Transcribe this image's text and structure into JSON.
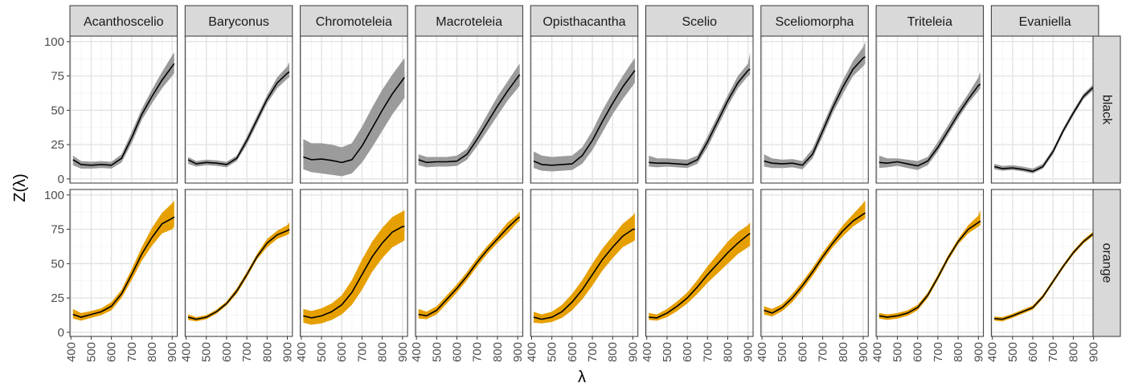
{
  "chart_data": {
    "type": "line",
    "xlabel": "λ",
    "ylabel": "Z(λ)",
    "xlim": [
      395,
      925
    ],
    "ylim": [
      -3,
      104
    ],
    "x_ticks": [
      400,
      500,
      600,
      700,
      800,
      900
    ],
    "y_ticks": [
      0,
      25,
      50,
      75,
      100
    ],
    "grid": true,
    "row_facets": [
      "black",
      "orange"
    ],
    "col_facets": [
      "Acanthoscelio",
      "Baryconus",
      "Chromoteleia",
      "Macroteleia",
      "Opisthacantha",
      "Scelio",
      "Sceliomorpha",
      "Triteleia",
      "Evaniella"
    ],
    "band_colors": {
      "black": "#9b9b9b",
      "orange": "#e69f00"
    },
    "line_color": "#000000",
    "x": [
      410,
      450,
      500,
      550,
      600,
      650,
      700,
      750,
      800,
      850,
      900,
      910
    ],
    "panels": [
      {
        "row": "black",
        "col": "Acanthoscelio",
        "y": [
          14,
          10.5,
          10,
          10.5,
          10,
          15,
          30,
          47,
          60,
          72,
          82,
          84
        ],
        "lower": [
          10,
          7.5,
          7.5,
          8,
          7.5,
          12,
          26,
          43,
          55,
          66,
          75,
          77
        ],
        "upper": [
          17,
          13,
          12.5,
          13,
          12.5,
          18,
          34,
          51,
          65,
          78,
          90,
          92
        ]
      },
      {
        "row": "black",
        "col": "Baryconus",
        "y": [
          14,
          11,
          12,
          11.5,
          10.5,
          15,
          28,
          43,
          58,
          70,
          77,
          78
        ],
        "lower": [
          11,
          9,
          10,
          9.5,
          8.5,
          13,
          25,
          40,
          55,
          66,
          73,
          74
        ],
        "upper": [
          16,
          13,
          14,
          13.5,
          12.5,
          17,
          31,
          46,
          61,
          74,
          82,
          85
        ]
      },
      {
        "row": "black",
        "col": "Chromoteleia",
        "y": [
          16,
          14,
          14.5,
          13.5,
          12,
          14,
          24,
          37,
          50,
          62,
          72,
          74
        ],
        "lower": [
          7,
          5,
          4,
          3,
          2,
          4,
          12,
          23,
          35,
          47,
          57,
          59
        ],
        "upper": [
          29,
          26,
          26,
          25,
          23,
          26,
          38,
          52,
          65,
          76,
          86,
          88
        ]
      },
      {
        "row": "black",
        "col": "Macroteleia",
        "y": [
          14,
          12,
          12.5,
          12.5,
          13,
          18,
          29,
          41,
          53,
          64,
          74,
          76
        ],
        "lower": [
          10,
          8.5,
          9,
          9,
          9.5,
          14,
          24,
          35,
          46,
          57,
          66,
          68
        ],
        "upper": [
          18,
          16,
          16,
          16,
          17,
          22,
          34,
          47,
          60,
          71,
          82,
          84
        ]
      },
      {
        "row": "black",
        "col": "Opisthacantha",
        "y": [
          13,
          10.5,
          10,
          10.5,
          11,
          17,
          28,
          42,
          55,
          67,
          77,
          79
        ],
        "lower": [
          8,
          6,
          5.5,
          6,
          6.5,
          11,
          21,
          34,
          47,
          58,
          68,
          70
        ],
        "upper": [
          20,
          17,
          16,
          16.5,
          17,
          23,
          35,
          50,
          63,
          75,
          86,
          88
        ]
      },
      {
        "row": "black",
        "col": "Scelio",
        "y": [
          12,
          11.5,
          11.5,
          11,
          10.5,
          14,
          27,
          42,
          57,
          70,
          79,
          80
        ],
        "lower": [
          9,
          8.5,
          9,
          8.5,
          8,
          11,
          23,
          38,
          53,
          66,
          75,
          76
        ],
        "upper": [
          17,
          15,
          15,
          14.5,
          14,
          17,
          31,
          46,
          61,
          75,
          84,
          92
        ]
      },
      {
        "row": "black",
        "col": "Sceliomorpha",
        "y": [
          13,
          11.5,
          11,
          11.5,
          10,
          18,
          35,
          52,
          67,
          80,
          88,
          89
        ],
        "lower": [
          9,
          8,
          8,
          8.5,
          7,
          15,
          31,
          48,
          62,
          75,
          82,
          84
        ],
        "upper": [
          18,
          15,
          14,
          14.5,
          13,
          22,
          39,
          56,
          72,
          86,
          96,
          100
        ]
      },
      {
        "row": "black",
        "col": "Triteleia",
        "y": [
          12,
          11.5,
          12.5,
          11,
          9.5,
          13,
          23,
          35,
          47,
          58,
          68,
          69
        ],
        "lower": [
          8,
          8.5,
          9.5,
          8,
          6.5,
          10,
          20,
          32,
          44,
          55,
          64,
          66
        ],
        "upper": [
          17,
          15,
          15,
          14,
          13,
          16,
          27,
          39,
          51,
          62,
          74,
          78
        ]
      },
      {
        "row": "black",
        "col": "Evaniella",
        "y": [
          9,
          7.5,
          8,
          7,
          5.5,
          9,
          20,
          35,
          48,
          60,
          67,
          69
        ],
        "lower": [
          7,
          6,
          6.5,
          5.5,
          4,
          7.5,
          18,
          33,
          46,
          58,
          65,
          66
        ],
        "upper": [
          11,
          9.5,
          10,
          9,
          7.5,
          11,
          22,
          37,
          50,
          62,
          69,
          71
        ]
      },
      {
        "row": "orange",
        "col": "Acanthoscelio",
        "y": [
          13,
          11,
          13,
          15,
          19,
          28,
          42,
          57,
          69,
          79,
          83,
          84
        ],
        "lower": [
          10,
          8.5,
          10.5,
          12.5,
          16,
          25,
          38,
          52,
          63,
          72,
          75,
          77
        ],
        "upper": [
          17,
          14,
          15.5,
          17.5,
          22,
          31,
          46,
          62,
          76,
          87,
          94,
          96
        ]
      },
      {
        "row": "orange",
        "col": "Baryconus",
        "y": [
          11,
          9.5,
          11,
          15,
          21,
          30,
          42,
          55,
          65,
          71,
          74,
          75
        ],
        "lower": [
          9,
          8,
          9.5,
          13.5,
          19.5,
          28,
          40,
          53,
          62,
          68,
          71,
          72
        ],
        "upper": [
          13,
          11,
          12.5,
          16.5,
          22.5,
          32,
          44,
          57,
          68,
          74,
          78,
          80
        ]
      },
      {
        "row": "orange",
        "col": "Chromoteleia",
        "y": [
          12,
          10.5,
          12,
          15,
          20,
          29,
          42,
          55,
          65,
          73,
          77,
          77
        ],
        "lower": [
          7,
          5.5,
          6.5,
          9,
          13,
          20,
          31,
          44,
          54,
          62,
          66,
          67
        ],
        "upper": [
          17,
          15.5,
          17.5,
          21,
          27,
          38,
          53,
          66,
          76,
          84,
          88,
          89
        ]
      },
      {
        "row": "orange",
        "col": "Macroteleia",
        "y": [
          13,
          12,
          16,
          24,
          32,
          41,
          51,
          60,
          68,
          76,
          83,
          84
        ],
        "lower": [
          10,
          9.5,
          13,
          21,
          29,
          38,
          48,
          57,
          65,
          72,
          80,
          81
        ],
        "upper": [
          17,
          15,
          19,
          27,
          35,
          44,
          54,
          63,
          71,
          80,
          86,
          88
        ]
      },
      {
        "row": "orange",
        "col": "Opisthacantha",
        "y": [
          11,
          9.5,
          11,
          15,
          22,
          31,
          42,
          53,
          62,
          70,
          75,
          75
        ],
        "lower": [
          7,
          6.5,
          7.5,
          10.5,
          16,
          24,
          34,
          45,
          54,
          62,
          66,
          67
        ],
        "upper": [
          15,
          13,
          15,
          20,
          28,
          38,
          50,
          61,
          70,
          79,
          85,
          87
        ]
      },
      {
        "row": "orange",
        "col": "Scelio",
        "y": [
          11,
          10.5,
          14,
          19,
          25,
          33,
          42,
          50,
          58,
          65,
          71,
          72
        ],
        "lower": [
          9,
          8.5,
          11,
          15.5,
          21,
          28,
          36,
          43,
          50,
          57,
          62,
          63
        ],
        "upper": [
          14,
          13,
          17,
          22.5,
          29,
          38,
          48,
          57,
          66,
          73,
          78,
          80
        ]
      },
      {
        "row": "orange",
        "col": "Sceliomorpha",
        "y": [
          16,
          14,
          18,
          25,
          34,
          44,
          55,
          65,
          74,
          81,
          86,
          87
        ],
        "lower": [
          13,
          11.5,
          15.5,
          22,
          31,
          41,
          52,
          62,
          70,
          77,
          82,
          83
        ],
        "upper": [
          19,
          17,
          20.5,
          28,
          37,
          47,
          58,
          68,
          78,
          86,
          94,
          96
        ]
      },
      {
        "row": "orange",
        "col": "Triteleia",
        "y": [
          12,
          11,
          12,
          14,
          18,
          27,
          40,
          54,
          66,
          75,
          80,
          81
        ],
        "lower": [
          10,
          9,
          10,
          12,
          16,
          25,
          38,
          52,
          64,
          72,
          77,
          78
        ],
        "upper": [
          14,
          13,
          14,
          16,
          20,
          29,
          42,
          56,
          68,
          78,
          85,
          89
        ]
      },
      {
        "row": "orange",
        "col": "Evaniella",
        "y": [
          10,
          9.5,
          12,
          15,
          18,
          26,
          37,
          48,
          58,
          66,
          72,
          73
        ],
        "lower": [
          8.5,
          8,
          10.5,
          13.5,
          16.5,
          24.5,
          35.5,
          46.5,
          56.5,
          64.5,
          70.5,
          71.5
        ],
        "upper": [
          11.5,
          11,
          13.5,
          16.5,
          19.5,
          27.5,
          38.5,
          49.5,
          59.5,
          67.5,
          73.5,
          74.5
        ]
      }
    ]
  }
}
